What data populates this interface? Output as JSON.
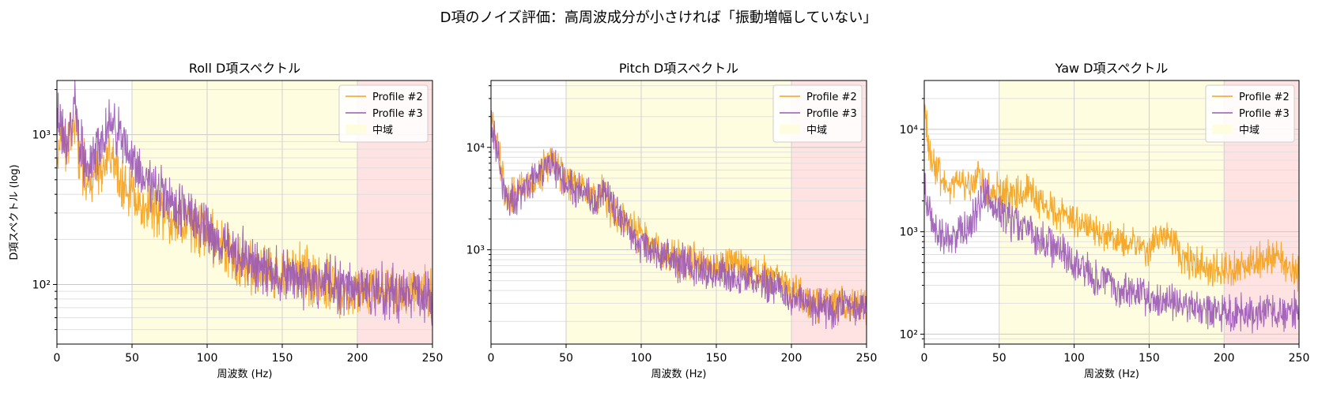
{
  "figure_title": "D項のノイズ評価：高周波成分が小さければ「振動増幅していない」",
  "colors": {
    "profile2": "#f5a11a",
    "profile3": "#9b59b6",
    "mid_band": "#fffde0",
    "high_band": "#ffe3e3"
  },
  "chart_data": [
    {
      "type": "line",
      "title": "Roll D項スペクトル",
      "xlabel": "周波数 (Hz)",
      "ylabel": "D項スペクトル (log)",
      "xlim": [
        0,
        250
      ],
      "ylim": [
        40,
        2300
      ],
      "yscale": "log",
      "xticks": [
        0,
        50,
        100,
        150,
        200,
        250
      ],
      "yticks": [
        100,
        1000
      ],
      "ytick_labels": [
        "10²",
        "10³"
      ],
      "bands": [
        {
          "name": "中域",
          "from": 50,
          "to": 200,
          "color": "#fffde0"
        },
        {
          "name": "",
          "from": 200,
          "to": 250,
          "color": "#ffe3e3"
        }
      ],
      "legend": {
        "position": "top-right",
        "entries": [
          "Profile #2",
          "Profile #3",
          "中域"
        ]
      },
      "series": [
        {
          "name": "Profile #2",
          "color": "#f5a11a",
          "x": [
            0,
            3,
            6,
            9,
            12,
            15,
            18,
            20,
            25,
            30,
            35,
            40,
            45,
            50,
            60,
            70,
            80,
            90,
            100,
            110,
            120,
            130,
            140,
            150,
            160,
            170,
            180,
            190,
            200,
            210,
            220,
            230,
            240,
            250
          ],
          "y": [
            700,
            1000,
            800,
            1000,
            1200,
            700,
            600,
            450,
            500,
            600,
            700,
            600,
            450,
            380,
            330,
            300,
            280,
            250,
            220,
            180,
            150,
            130,
            120,
            110,
            120,
            110,
            100,
            95,
            90,
            90,
            85,
            85,
            90,
            85
          ]
        },
        {
          "name": "Profile #3",
          "color": "#9b59b6",
          "x": [
            0,
            3,
            6,
            9,
            12,
            15,
            18,
            20,
            25,
            30,
            35,
            40,
            45,
            50,
            60,
            70,
            80,
            90,
            100,
            110,
            120,
            130,
            140,
            150,
            160,
            170,
            180,
            190,
            200,
            210,
            220,
            230,
            240,
            250
          ],
          "y": [
            1300,
            1100,
            900,
            1200,
            1600,
            900,
            700,
            600,
            700,
            900,
            1200,
            1100,
            900,
            700,
            500,
            400,
            330,
            280,
            230,
            190,
            160,
            140,
            125,
            110,
            110,
            105,
            100,
            95,
            90,
            90,
            88,
            88,
            85,
            80
          ]
        }
      ]
    },
    {
      "type": "line",
      "title": "Pitch D項スペクトル",
      "xlabel": "周波数 (Hz)",
      "ylabel": "",
      "xlim": [
        0,
        250
      ],
      "ylim": [
        120,
        45000
      ],
      "yscale": "log",
      "xticks": [
        0,
        50,
        100,
        150,
        200,
        250
      ],
      "yticks": [
        1000,
        10000
      ],
      "ytick_labels": [
        "10³",
        "10⁴"
      ],
      "bands": [
        {
          "name": "中域",
          "from": 50,
          "to": 200,
          "color": "#fffde0"
        },
        {
          "name": "",
          "from": 200,
          "to": 250,
          "color": "#ffe3e3"
        }
      ],
      "legend": {
        "position": "top-right",
        "entries": [
          "Profile #2",
          "Profile #3",
          "中域"
        ]
      },
      "series": [
        {
          "name": "Profile #2",
          "color": "#f5a11a",
          "x": [
            0,
            3,
            6,
            9,
            12,
            15,
            20,
            25,
            30,
            35,
            40,
            45,
            50,
            60,
            70,
            75,
            80,
            90,
            100,
            110,
            120,
            130,
            140,
            150,
            160,
            170,
            180,
            190,
            200,
            210,
            220,
            230,
            240,
            250
          ],
          "y": [
            25000,
            15000,
            8000,
            4000,
            3000,
            3500,
            4000,
            4500,
            5000,
            6000,
            7500,
            6000,
            4500,
            4000,
            3300,
            3500,
            2500,
            1800,
            1300,
            1000,
            900,
            800,
            750,
            700,
            700,
            650,
            600,
            520,
            400,
            320,
            290,
            280,
            290,
            300
          ]
        },
        {
          "name": "Profile #3",
          "color": "#9b59b6",
          "x": [
            0,
            3,
            6,
            9,
            12,
            15,
            20,
            25,
            30,
            35,
            40,
            45,
            50,
            60,
            70,
            75,
            80,
            90,
            100,
            110,
            120,
            130,
            140,
            150,
            160,
            170,
            180,
            190,
            200,
            210,
            220,
            230,
            240,
            250
          ],
          "y": [
            20000,
            12000,
            7000,
            3500,
            2800,
            3200,
            3800,
            4300,
            5000,
            6200,
            7000,
            5500,
            4300,
            3800,
            3200,
            4000,
            2700,
            1700,
            1150,
            900,
            800,
            720,
            650,
            600,
            560,
            520,
            470,
            420,
            340,
            290,
            270,
            260,
            270,
            280
          ]
        }
      ]
    },
    {
      "type": "line",
      "title": "Yaw D項スペクトル",
      "xlabel": "周波数 (Hz)",
      "ylabel": "",
      "xlim": [
        0,
        250
      ],
      "ylim": [
        80,
        30000
      ],
      "yscale": "log",
      "xticks": [
        0,
        50,
        100,
        150,
        200,
        250
      ],
      "yticks": [
        100,
        1000,
        10000
      ],
      "ytick_labels": [
        "10²",
        "10³",
        "10⁴"
      ],
      "bands": [
        {
          "name": "中域",
          "from": 50,
          "to": 200,
          "color": "#fffde0"
        },
        {
          "name": "",
          "from": 200,
          "to": 250,
          "color": "#ffe3e3"
        }
      ],
      "legend": {
        "position": "top-right",
        "entries": [
          "Profile #2",
          "Profile #3",
          "中域"
        ]
      },
      "series": [
        {
          "name": "Profile #2",
          "color": "#f5a11a",
          "x": [
            0,
            2,
            5,
            10,
            15,
            20,
            25,
            30,
            35,
            40,
            50,
            60,
            70,
            80,
            90,
            100,
            110,
            120,
            130,
            140,
            150,
            160,
            170,
            180,
            190,
            200,
            210,
            220,
            230,
            240,
            250
          ],
          "y": [
            20000,
            9000,
            5000,
            3500,
            3000,
            2800,
            3500,
            2600,
            3800,
            2600,
            2400,
            2300,
            2500,
            1800,
            1500,
            1300,
            1200,
            1000,
            850,
            750,
            650,
            1000,
            600,
            500,
            450,
            420,
            450,
            500,
            550,
            500,
            400
          ]
        },
        {
          "name": "Profile #3",
          "color": "#9b59b6",
          "x": [
            0,
            2,
            5,
            10,
            15,
            20,
            25,
            30,
            35,
            40,
            50,
            60,
            70,
            80,
            90,
            100,
            110,
            120,
            130,
            140,
            150,
            160,
            170,
            180,
            190,
            200,
            210,
            220,
            230,
            240,
            250
          ],
          "y": [
            3000,
            1800,
            1300,
            1000,
            900,
            800,
            1000,
            1100,
            1600,
            2300,
            1500,
            1200,
            1000,
            800,
            650,
            500,
            380,
            320,
            280,
            250,
            230,
            220,
            200,
            180,
            170,
            160,
            160,
            155,
            160,
            160,
            170
          ]
        }
      ]
    }
  ]
}
